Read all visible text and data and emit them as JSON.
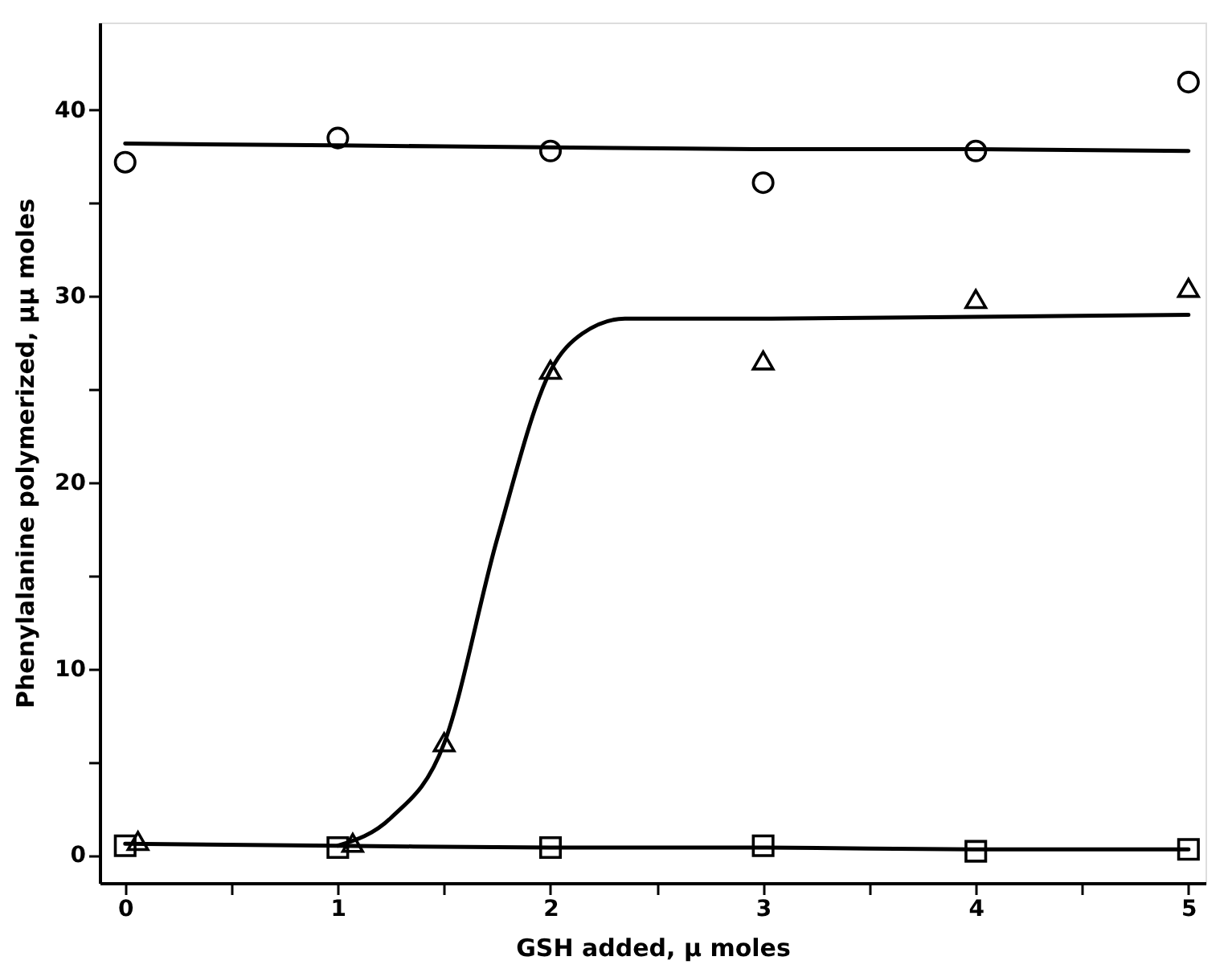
{
  "chart_data": {
    "type": "scatter",
    "xlabel": "GSH added, μ moles",
    "ylabel": "Phenylalanine polymerized, μμ moles",
    "xlim": [
      -0.12,
      5.08
    ],
    "ylim": [
      -1.5,
      44.7
    ],
    "xticks": [
      0,
      {
        "value": 0.5,
        "label": null
      },
      1,
      {
        "value": 1.5,
        "label": null
      },
      2,
      {
        "value": 2.5,
        "label": null
      },
      3,
      {
        "value": 3.5,
        "label": null
      },
      4,
      {
        "value": 4.5,
        "label": null
      },
      5
    ],
    "yticks": [
      0,
      {
        "value": 5,
        "label": null
      },
      10,
      {
        "value": 15,
        "label": null
      },
      20,
      {
        "value": 25,
        "label": null
      },
      30,
      {
        "value": 35,
        "label": null
      },
      40
    ],
    "grid": false,
    "series": [
      {
        "type": "line",
        "color": "#000000",
        "marker": "none",
        "line_style": "solid",
        "x": [
          0,
          1,
          2,
          3,
          4,
          5
        ],
        "values": [
          38.2,
          38.1,
          38.0,
          37.9,
          37.9,
          37.8
        ]
      },
      {
        "type": "line",
        "color": "#000000",
        "marker": "none",
        "line_style": "solid",
        "x": [
          1.0,
          1.25,
          1.5,
          1.75,
          2.0,
          2.15,
          2.35,
          3,
          4,
          5
        ],
        "values": [
          0.5,
          2.0,
          6.0,
          17.0,
          26.0,
          28.0,
          28.8,
          28.8,
          28.9,
          29.0
        ]
      },
      {
        "type": "line",
        "color": "#000000",
        "marker": "none",
        "line_style": "solid",
        "x": [
          0,
          1,
          2,
          3,
          4,
          5
        ],
        "values": [
          0.6,
          0.5,
          0.4,
          0.4,
          0.3,
          0.3
        ]
      },
      {
        "color": "#000000",
        "marker": "circle",
        "x": [
          0,
          1,
          2,
          3,
          4,
          5
        ],
        "values": [
          37.2,
          38.5,
          37.8,
          36.1,
          37.8,
          41.5
        ]
      },
      {
        "color": "#000000",
        "marker": "triangle",
        "x": [
          0.06,
          1.07,
          1.5,
          2,
          3,
          4,
          5
        ],
        "values": [
          0.6,
          0.5,
          5.9,
          25.9,
          26.4,
          29.7,
          30.3
        ]
      },
      {
        "color": "#000000",
        "marker": "square",
        "x": [
          0,
          1,
          2,
          3,
          4,
          5
        ],
        "values": [
          0.5,
          0.4,
          0.4,
          0.5,
          0.2,
          0.3
        ]
      }
    ]
  }
}
